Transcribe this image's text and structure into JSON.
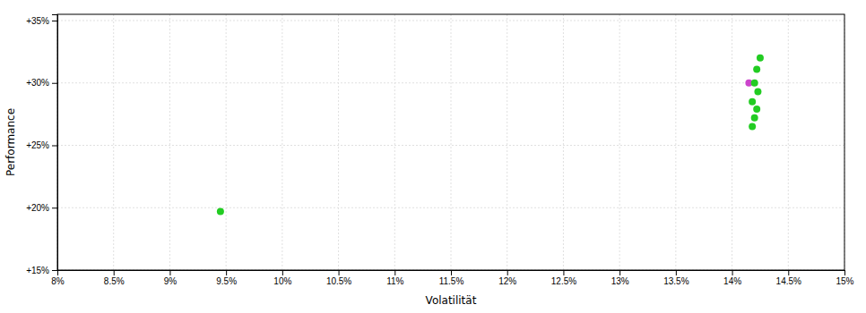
{
  "chart_data": {
    "type": "scatter",
    "xlabel": "Volatilität",
    "ylabel": "Performance",
    "xlim": [
      0.08,
      0.15
    ],
    "ylim": [
      0.15,
      0.355
    ],
    "xticks": [
      {
        "value": 0.08,
        "label": "8%"
      },
      {
        "value": 0.085,
        "label": "8.5%"
      },
      {
        "value": 0.09,
        "label": "9%"
      },
      {
        "value": 0.095,
        "label": "9.5%"
      },
      {
        "value": 0.1,
        "label": "10%"
      },
      {
        "value": 0.105,
        "label": "10.5%"
      },
      {
        "value": 0.11,
        "label": "11%"
      },
      {
        "value": 0.115,
        "label": "11.5%"
      },
      {
        "value": 0.12,
        "label": "12%"
      },
      {
        "value": 0.125,
        "label": "12.5%"
      },
      {
        "value": 0.13,
        "label": "13%"
      },
      {
        "value": 0.135,
        "label": "13.5%"
      },
      {
        "value": 0.14,
        "label": "14%"
      },
      {
        "value": 0.145,
        "label": "14.5%"
      },
      {
        "value": 0.15,
        "label": "15%"
      }
    ],
    "yticks": [
      {
        "value": 0.15,
        "label": "+15%"
      },
      {
        "value": 0.2,
        "label": "+20%"
      },
      {
        "value": 0.25,
        "label": "+25%"
      },
      {
        "value": 0.3,
        "label": "+30%"
      },
      {
        "value": 0.35,
        "label": "+35%"
      }
    ],
    "grid": true,
    "series": [
      {
        "color": "#22cc22",
        "x": [
          0.0945,
          0.1425,
          0.1422,
          0.142,
          0.1423,
          0.1418,
          0.1422,
          0.142,
          0.1418
        ],
        "values": [
          0.197,
          0.32,
          0.311,
          0.3,
          0.293,
          0.285,
          0.279,
          0.272,
          0.265
        ]
      },
      {
        "color": "#cc44cc",
        "x": [
          0.1415
        ],
        "values": [
          0.3
        ]
      }
    ]
  }
}
